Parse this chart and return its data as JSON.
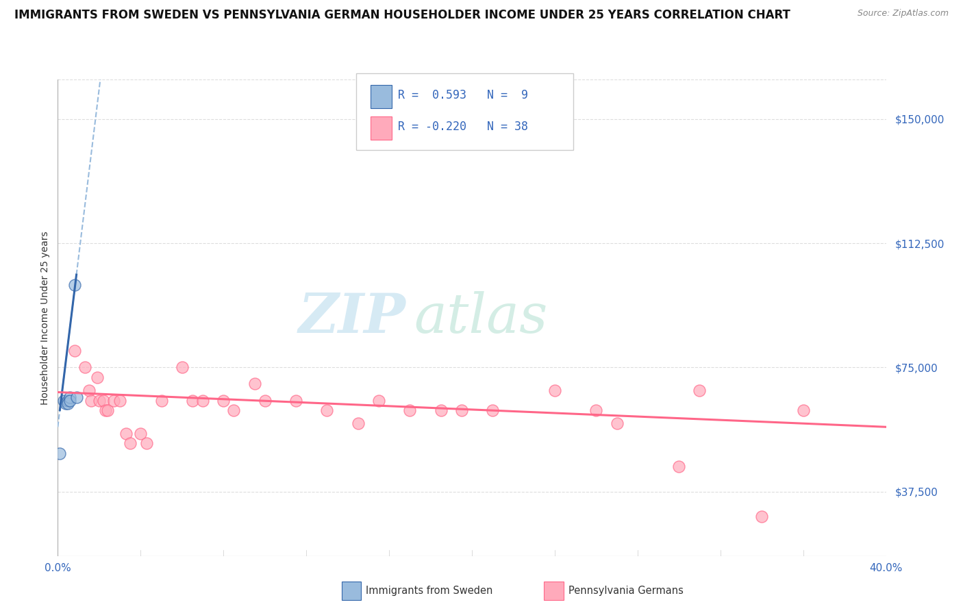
{
  "title": "IMMIGRANTS FROM SWEDEN VS PENNSYLVANIA GERMAN HOUSEHOLDER INCOME UNDER 25 YEARS CORRELATION CHART",
  "source": "Source: ZipAtlas.com",
  "ylabel": "Householder Income Under 25 years",
  "xlim": [
    0.0,
    0.4
  ],
  "ylim": [
    18000,
    162000
  ],
  "yticks": [
    37500,
    75000,
    112500,
    150000
  ],
  "ytick_labels": [
    "$37,500",
    "$75,000",
    "$112,500",
    "$150,000"
  ],
  "xtick_labels": [
    "0.0%",
    "40.0%"
  ],
  "color_blue": "#99BBDD",
  "color_pink": "#FFAABB",
  "color_blue_line": "#3366AA",
  "color_pink_line": "#FF6688",
  "sweden_points": [
    [
      0.001,
      49000
    ],
    [
      0.003,
      65000
    ],
    [
      0.004,
      64000
    ],
    [
      0.005,
      65000
    ],
    [
      0.005,
      64000
    ],
    [
      0.006,
      66000
    ],
    [
      0.006,
      65000
    ],
    [
      0.008,
      100000
    ],
    [
      0.009,
      66000
    ]
  ],
  "pagerman_points": [
    [
      0.008,
      80000
    ],
    [
      0.013,
      75000
    ],
    [
      0.015,
      68000
    ],
    [
      0.016,
      65000
    ],
    [
      0.019,
      72000
    ],
    [
      0.02,
      65000
    ],
    [
      0.022,
      65000
    ],
    [
      0.023,
      62000
    ],
    [
      0.024,
      62000
    ],
    [
      0.027,
      65000
    ],
    [
      0.03,
      65000
    ],
    [
      0.033,
      55000
    ],
    [
      0.035,
      52000
    ],
    [
      0.04,
      55000
    ],
    [
      0.043,
      52000
    ],
    [
      0.05,
      65000
    ],
    [
      0.06,
      75000
    ],
    [
      0.065,
      65000
    ],
    [
      0.07,
      65000
    ],
    [
      0.08,
      65000
    ],
    [
      0.085,
      62000
    ],
    [
      0.095,
      70000
    ],
    [
      0.1,
      65000
    ],
    [
      0.115,
      65000
    ],
    [
      0.13,
      62000
    ],
    [
      0.145,
      58000
    ],
    [
      0.155,
      65000
    ],
    [
      0.17,
      62000
    ],
    [
      0.185,
      62000
    ],
    [
      0.195,
      62000
    ],
    [
      0.21,
      62000
    ],
    [
      0.24,
      68000
    ],
    [
      0.26,
      62000
    ],
    [
      0.27,
      58000
    ],
    [
      0.3,
      45000
    ],
    [
      0.31,
      68000
    ],
    [
      0.34,
      30000
    ],
    [
      0.36,
      62000
    ]
  ],
  "background_color": "#FFFFFF",
  "grid_color": "#DDDDDD",
  "title_color": "#111111",
  "axis_label_color": "#333333",
  "tick_label_color": "#3366BB",
  "source_color": "#888888",
  "watermark_zip_color": "#BBDDEE",
  "watermark_atlas_color": "#AADDCC"
}
